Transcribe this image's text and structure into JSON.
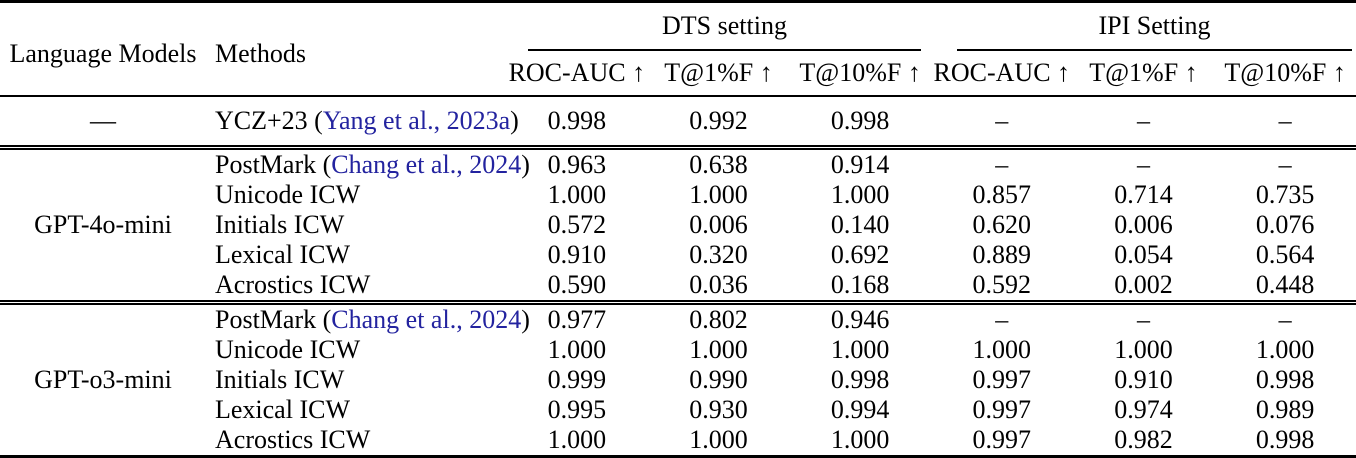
{
  "table": {
    "headers": {
      "language_models": "Language Models",
      "methods": "Methods"
    },
    "groups": [
      {
        "label": "DTS setting",
        "metrics": [
          "ROC-AUC ↑",
          "T@1%F ↑",
          "T@10%F ↑"
        ]
      },
      {
        "label": "IPI Setting",
        "metrics": [
          "ROC-AUC ↑",
          "T@1%F ↑",
          "T@10%F ↑"
        ]
      }
    ],
    "sections": [
      {
        "model": "—",
        "rows": [
          {
            "method": "YCZ+23 (",
            "cite": "Yang et al., 2023a",
            "suffix": ")",
            "values": [
              "0.998",
              "0.992",
              "0.998",
              "–",
              "–",
              "–"
            ]
          }
        ]
      },
      {
        "model": "GPT-4o-mini",
        "rows": [
          {
            "method": "PostMark (",
            "cite": "Chang et al., 2024",
            "suffix": ")",
            "values": [
              "0.963",
              "0.638",
              "0.914",
              "–",
              "–",
              "–"
            ]
          },
          {
            "method": "Unicode ICW",
            "values": [
              "1.000",
              "1.000",
              "1.000",
              "0.857",
              "0.714",
              "0.735"
            ]
          },
          {
            "method": "Initials ICW",
            "values": [
              "0.572",
              "0.006",
              "0.140",
              "0.620",
              "0.006",
              "0.076"
            ]
          },
          {
            "method": "Lexical ICW",
            "values": [
              "0.910",
              "0.320",
              "0.692",
              "0.889",
              "0.054",
              "0.564"
            ]
          },
          {
            "method": "Acrostics ICW",
            "values": [
              "0.590",
              "0.036",
              "0.168",
              "0.592",
              "0.002",
              "0.448"
            ]
          }
        ]
      },
      {
        "model": "GPT-o3-mini",
        "rows": [
          {
            "method": "PostMark (",
            "cite": "Chang et al., 2024",
            "suffix": ")",
            "values": [
              "0.977",
              "0.802",
              "0.946",
              "–",
              "–",
              "–"
            ]
          },
          {
            "method": "Unicode ICW",
            "values": [
              "1.000",
              "1.000",
              "1.000",
              "1.000",
              "1.000",
              "1.000"
            ]
          },
          {
            "method": "Initials ICW",
            "values": [
              "0.999",
              "0.990",
              "0.998",
              "0.997",
              "0.910",
              "0.998"
            ]
          },
          {
            "method": "Lexical ICW",
            "values": [
              "0.995",
              "0.930",
              "0.994",
              "0.997",
              "0.974",
              "0.989"
            ]
          },
          {
            "method": "Acrostics ICW",
            "values": [
              "1.000",
              "1.000",
              "1.000",
              "0.997",
              "0.982",
              "0.998"
            ]
          }
        ]
      }
    ],
    "colors": {
      "citation": "#23239F",
      "text": "#000000",
      "background": "#FFFFFF"
    }
  }
}
